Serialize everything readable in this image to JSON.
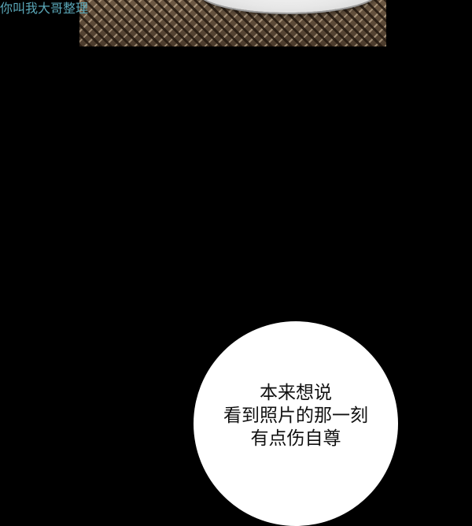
{
  "watermark": "你叫我大哥整理",
  "speech_bubble": {
    "lines": [
      "本来想说",
      "看到照片的那一刻",
      "有点伤自尊"
    ]
  }
}
